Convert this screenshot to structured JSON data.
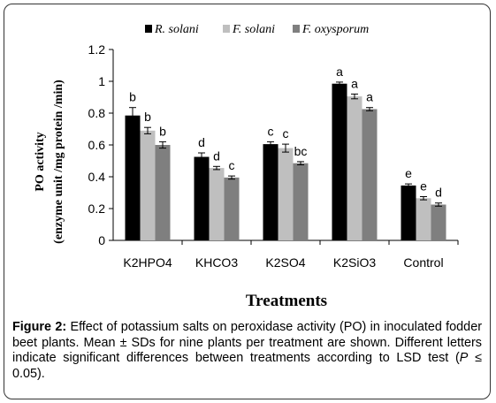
{
  "chart_data": {
    "type": "bar",
    "categories": [
      "K2HPO4",
      "KHCO3",
      "K2SO4",
      "K2SiO3",
      "Control"
    ],
    "series": [
      {
        "name": "R. solani",
        "color": "#000000",
        "values": [
          0.785,
          0.525,
          0.605,
          0.985,
          0.345
        ],
        "errors": [
          0.05,
          0.025,
          0.015,
          0.01,
          0.01
        ],
        "sig": [
          "b",
          "d",
          "c",
          "a",
          "e"
        ]
      },
      {
        "name": "F. solani",
        "color": "#bfbfbf",
        "values": [
          0.69,
          0.455,
          0.58,
          0.905,
          0.265
        ],
        "errors": [
          0.02,
          0.01,
          0.025,
          0.015,
          0.01
        ],
        "sig": [
          "b",
          "d",
          "c",
          "a",
          "e"
        ]
      },
      {
        "name": "F. oxysporum",
        "color": "#7f7f7f",
        "values": [
          0.6,
          0.395,
          0.485,
          0.825,
          0.225
        ],
        "errors": [
          0.02,
          0.01,
          0.01,
          0.01,
          0.01
        ],
        "sig": [
          "b",
          "c",
          "bc",
          "a",
          "d"
        ]
      }
    ],
    "ylim": [
      0,
      1.2
    ],
    "yticks": [
      "0",
      "0.2",
      "0.4",
      "0.6",
      "0.8",
      "1",
      "1.2"
    ],
    "ylabel_line1": "PO activity",
    "ylabel_line2": "(enzyme unit /mg protein /min)",
    "xlabel": "Treatments",
    "legend_position": "top"
  },
  "caption": {
    "label": "Figure 2:",
    "text": " Effect of potassium salts on peroxidase activity (PO) in inoculated fodder beet plants. Mean ± SDs for nine plants per treatment are shown. Different letters indicate significant differences between treatments according to LSD test (",
    "p_symbol": "P",
    "p_rest": " ≤ 0.05)."
  }
}
